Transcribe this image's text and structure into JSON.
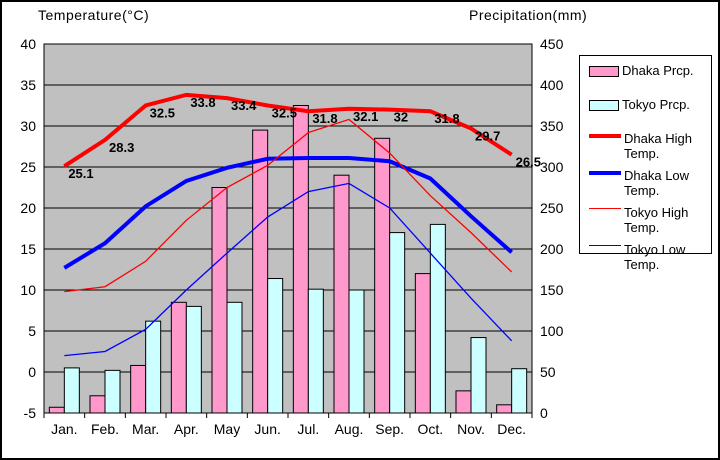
{
  "chart": {
    "temp_axis_title": "Temperature(°C)",
    "precip_axis_title": "Precipitation(mm)"
  },
  "chart_data": {
    "type": "combo-bar-line",
    "categories": [
      "Jan.",
      "Feb.",
      "Mar.",
      "Apr.",
      "May",
      "Jun.",
      "Jul.",
      "Aug.",
      "Sep.",
      "Oct.",
      "Nov.",
      "Dec."
    ],
    "temp_axis": {
      "min": -5,
      "max": 40,
      "step": 5
    },
    "precip_axis": {
      "min": 0,
      "max": 450,
      "step": 50
    },
    "grid": "horizontal",
    "plot_bg": "#C0C0C0",
    "legend_position": "right",
    "series": [
      {
        "name": "Dhaka Prcp.",
        "type": "bar",
        "axis": "precip",
        "color": "#FF99CC",
        "values": [
          7,
          21,
          58,
          135,
          275,
          345,
          375,
          290,
          335,
          170,
          27,
          10
        ]
      },
      {
        "name": "Tokyo Prcp.",
        "type": "bar",
        "axis": "precip",
        "color": "#CCFFFF",
        "values": [
          55,
          52,
          112,
          130,
          135,
          164,
          151,
          150,
          220,
          230,
          92,
          54
        ]
      },
      {
        "name": "Dhaka High Temp.",
        "type": "line",
        "axis": "temp",
        "color": "#FF0000",
        "width": 4,
        "labeled": true,
        "values": [
          25.1,
          28.3,
          32.5,
          33.8,
          33.4,
          32.5,
          31.8,
          32.1,
          32,
          31.8,
          29.7,
          26.5
        ]
      },
      {
        "name": "Dhaka Low Temp.",
        "type": "line",
        "axis": "temp",
        "color": "#0000FF",
        "width": 4,
        "values": [
          12.7,
          15.7,
          20.2,
          23.3,
          24.9,
          26.0,
          26.1,
          26.1,
          25.7,
          23.6,
          19.0,
          14.6
        ]
      },
      {
        "name": "Tokyo High Temp.",
        "type": "line",
        "axis": "temp",
        "color": "#FF0000",
        "width": 1.3,
        "values": [
          9.8,
          10.4,
          13.5,
          18.5,
          22.5,
          25.2,
          29.2,
          30.8,
          26.7,
          21.5,
          17.0,
          12.2
        ]
      },
      {
        "name": "Tokyo Low Temp.",
        "type": "line",
        "axis": "temp",
        "color": "#0000FF",
        "width": 1.3,
        "values": [
          2.0,
          2.5,
          5.2,
          10.0,
          14.5,
          18.9,
          22.0,
          23.0,
          20.0,
          14.5,
          9.0,
          3.8
        ]
      }
    ]
  }
}
